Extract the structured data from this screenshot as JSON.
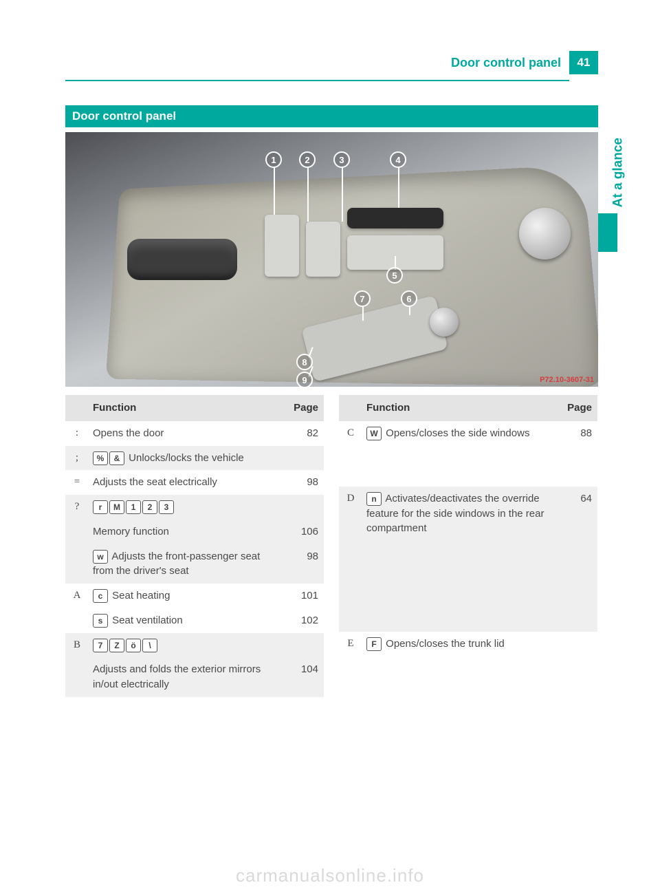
{
  "header": {
    "title": "Door control panel",
    "page_number": "41"
  },
  "side_tab": "At a glance",
  "section_heading": "Door control panel",
  "photo": {
    "callouts": [
      "1",
      "2",
      "3",
      "4",
      "5",
      "6",
      "7",
      "8",
      "9"
    ],
    "code": "P72.10-3607-31"
  },
  "table_headers": {
    "function": "Function",
    "page": "Page"
  },
  "left_rows": [
    {
      "num": ":",
      "shade": false,
      "lines": [
        {
          "icons": [],
          "text": "Opens the door",
          "page": "82"
        }
      ]
    },
    {
      "num": ";",
      "shade": true,
      "lines": [
        {
          "icons": [
            "%",
            "&"
          ],
          "text": "Unlocks/locks the vehicle",
          "page": ""
        }
      ]
    },
    {
      "num": "=",
      "shade": false,
      "lines": [
        {
          "icons": [],
          "text": "Adjusts the seat electrically",
          "page": "98"
        }
      ]
    },
    {
      "num": "?",
      "shade": true,
      "lines": [
        {
          "icons": [
            "r",
            "M",
            "1",
            "2",
            "3"
          ],
          "text": "",
          "page": ""
        },
        {
          "icons": [],
          "text": "Memory function",
          "page": "106"
        },
        {
          "icons": [
            "w"
          ],
          "text": "Adjusts the front-passenger seat from the driver's seat",
          "page": "98"
        }
      ]
    },
    {
      "num": "A",
      "shade": false,
      "lines": [
        {
          "icons": [
            "c"
          ],
          "text": "Seat heating",
          "page": "101"
        },
        {
          "icons": [
            "s"
          ],
          "text": "Seat ventilation",
          "page": "102"
        }
      ]
    },
    {
      "num": "B",
      "shade": true,
      "lines": [
        {
          "icons": [
            "7",
            "Z",
            "ö",
            "\\"
          ],
          "text": "",
          "page": ""
        },
        {
          "icons": [],
          "text": "Adjusts and folds the exterior mirrors in/out electrically",
          "page": "104"
        }
      ]
    }
  ],
  "right_rows": [
    {
      "num": "C",
      "shade": false,
      "lines": [
        {
          "icons": [
            "W"
          ],
          "text": "Opens/closes the side windows",
          "page": "88"
        }
      ]
    },
    {
      "num": "D",
      "shade": true,
      "lines": [
        {
          "icons": [
            "n"
          ],
          "text": "Activates/deactivates the override feature for the side windows in the rear compartment",
          "page": "64"
        }
      ]
    },
    {
      "num": "E",
      "shade": false,
      "lines": [
        {
          "icons": [
            "F"
          ],
          "text": "Opens/closes the trunk lid",
          "page": ""
        }
      ]
    }
  ],
  "watermark": "carmanualsonline.info",
  "colors": {
    "accent": "#00a99d",
    "header_bg": "#e4e4e4",
    "shade_bg": "#efefef",
    "text": "#4a4a4a"
  }
}
